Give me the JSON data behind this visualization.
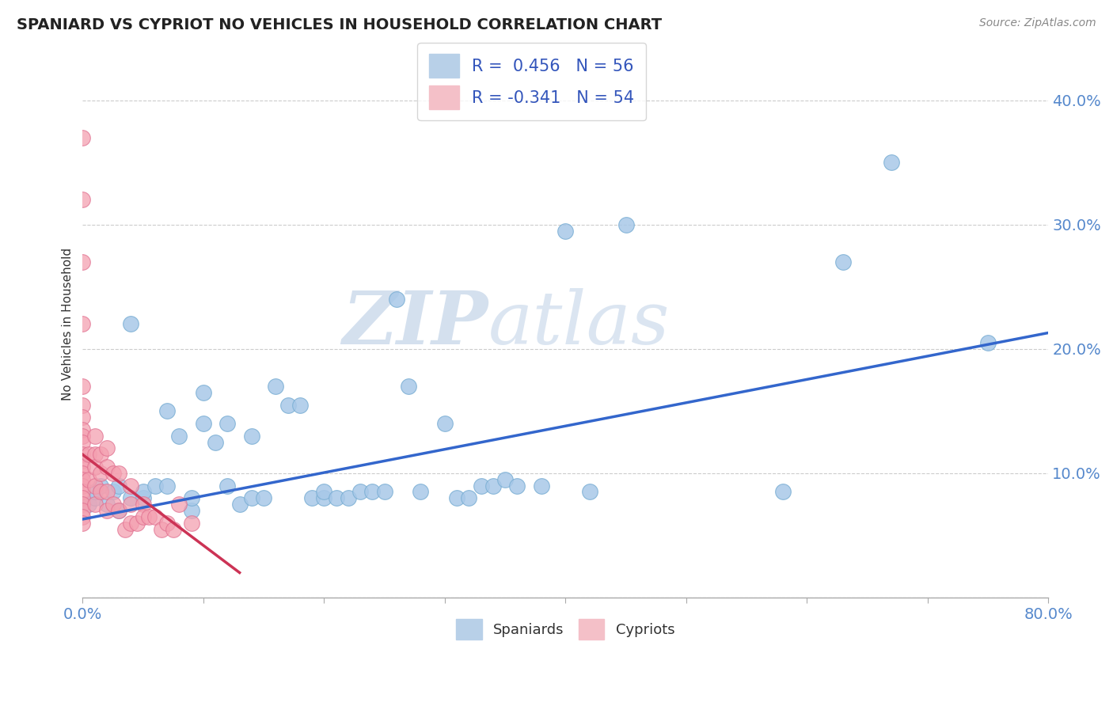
{
  "title": "SPANIARD VS CYPRIOT NO VEHICLES IN HOUSEHOLD CORRELATION CHART",
  "source": "Source: ZipAtlas.com",
  "ylabel": "No Vehicles in Household",
  "xlim": [
    0.0,
    0.8
  ],
  "ylim": [
    0.0,
    0.44
  ],
  "legend_r_blue": "R =  0.456",
  "legend_n_blue": "N = 56",
  "legend_r_pink": "R = -0.341",
  "legend_n_pink": "N = 54",
  "blue_color": "#a8c8e8",
  "blue_edge_color": "#7bafd4",
  "pink_color": "#f4a0b0",
  "pink_edge_color": "#e07090",
  "blue_line_color": "#3366cc",
  "pink_line_color": "#cc3355",
  "watermark_color": "#ccd9e8",
  "grid_color": "#cccccc",
  "background_color": "#ffffff",
  "title_color": "#222222",
  "source_color": "#888888",
  "tick_color": "#5588cc",
  "ylabel_color": "#333333",
  "legend_text_color": "#3355bb",
  "spaniards_x": [
    0.005,
    0.01,
    0.01,
    0.015,
    0.02,
    0.025,
    0.03,
    0.03,
    0.04,
    0.04,
    0.05,
    0.05,
    0.06,
    0.07,
    0.07,
    0.08,
    0.09,
    0.09,
    0.1,
    0.1,
    0.11,
    0.12,
    0.12,
    0.13,
    0.14,
    0.14,
    0.15,
    0.16,
    0.17,
    0.18,
    0.19,
    0.2,
    0.2,
    0.21,
    0.22,
    0.23,
    0.24,
    0.25,
    0.26,
    0.27,
    0.28,
    0.3,
    0.31,
    0.32,
    0.33,
    0.34,
    0.35,
    0.36,
    0.38,
    0.4,
    0.42,
    0.45,
    0.58,
    0.63,
    0.67,
    0.75
  ],
  "spaniards_y": [
    0.075,
    0.08,
    0.085,
    0.09,
    0.075,
    0.085,
    0.07,
    0.09,
    0.08,
    0.22,
    0.08,
    0.085,
    0.09,
    0.15,
    0.09,
    0.13,
    0.07,
    0.08,
    0.14,
    0.165,
    0.125,
    0.09,
    0.14,
    0.075,
    0.13,
    0.08,
    0.08,
    0.17,
    0.155,
    0.155,
    0.08,
    0.08,
    0.085,
    0.08,
    0.08,
    0.085,
    0.085,
    0.085,
    0.24,
    0.17,
    0.085,
    0.14,
    0.08,
    0.08,
    0.09,
    0.09,
    0.095,
    0.09,
    0.09,
    0.295,
    0.085,
    0.3,
    0.085,
    0.27,
    0.35,
    0.205
  ],
  "cypriots_x": [
    0.0,
    0.0,
    0.0,
    0.0,
    0.0,
    0.0,
    0.0,
    0.0,
    0.0,
    0.0,
    0.0,
    0.0,
    0.0,
    0.0,
    0.0,
    0.0,
    0.0,
    0.0,
    0.0,
    0.0,
    0.0,
    0.0,
    0.005,
    0.005,
    0.01,
    0.01,
    0.01,
    0.01,
    0.01,
    0.015,
    0.015,
    0.015,
    0.02,
    0.02,
    0.02,
    0.02,
    0.025,
    0.025,
    0.03,
    0.03,
    0.035,
    0.04,
    0.04,
    0.04,
    0.045,
    0.05,
    0.05,
    0.055,
    0.06,
    0.065,
    0.07,
    0.075,
    0.08,
    0.09
  ],
  "cypriots_y": [
    0.37,
    0.32,
    0.27,
    0.22,
    0.17,
    0.155,
    0.145,
    0.135,
    0.13,
    0.125,
    0.115,
    0.11,
    0.105,
    0.1,
    0.095,
    0.09,
    0.085,
    0.08,
    0.075,
    0.07,
    0.065,
    0.06,
    0.115,
    0.095,
    0.13,
    0.115,
    0.105,
    0.09,
    0.075,
    0.115,
    0.1,
    0.085,
    0.12,
    0.105,
    0.085,
    0.07,
    0.1,
    0.075,
    0.1,
    0.07,
    0.055,
    0.09,
    0.075,
    0.06,
    0.06,
    0.075,
    0.065,
    0.065,
    0.065,
    0.055,
    0.06,
    0.055,
    0.075,
    0.06
  ],
  "blue_trendline_x": [
    0.0,
    0.8
  ],
  "blue_trendline_y": [
    0.063,
    0.213
  ],
  "pink_trendline_x": [
    0.0,
    0.13
  ],
  "pink_trendline_y": [
    0.115,
    0.02
  ]
}
